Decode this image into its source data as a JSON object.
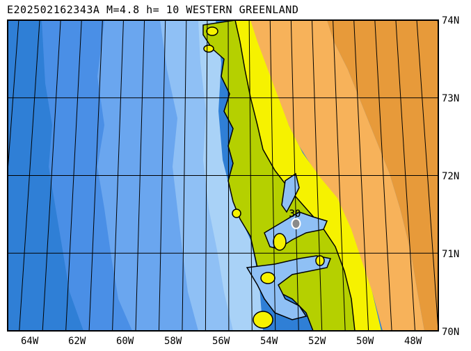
{
  "title": "E202502162343A M=4.8 h= 10 WESTERN GREENLAND",
  "map": {
    "lat_labels": [
      "74N",
      "73N",
      "72N",
      "71N",
      "70N"
    ],
    "lon_labels": [
      "64W",
      "62W",
      "60W",
      "58W",
      "56W",
      "54W",
      "52W",
      "50W",
      "48W"
    ],
    "lon_range": [
      -65.5,
      -47.0
    ],
    "lat_range": [
      70,
      74
    ],
    "epicenter": {
      "lat": 71.38,
      "lon": -53.0,
      "label": "30"
    },
    "colors": {
      "deep_ocean": "#2f7fd6",
      "ocean": "#4a8fe6",
      "mid_ocean": "#6aa6ef",
      "shallow": "#8fc0f5",
      "coast_water": "#a9d2f7",
      "lowland": "#b5d000",
      "land_green": "#9abb00",
      "land_yellow": "#f6f200",
      "highland": "#f7b25a",
      "ice_cap": "#e79a3a",
      "epicenter_fill": "#8a8a8a",
      "frame": "#000000"
    }
  }
}
